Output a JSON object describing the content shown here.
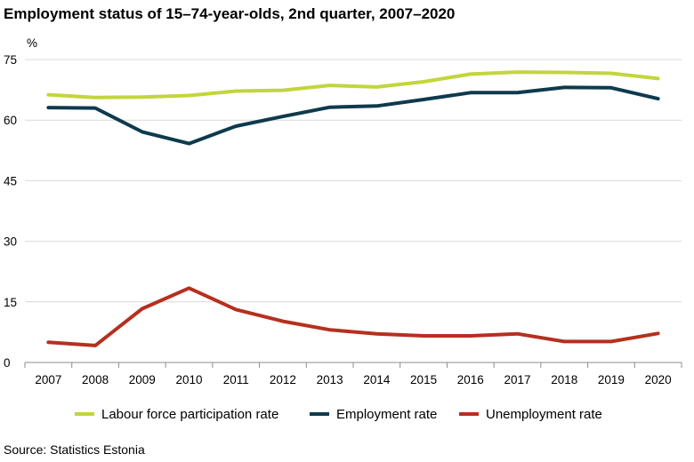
{
  "title": "Employment status of 15–74-year-olds, 2nd quarter, 2007–2020",
  "source": "Source: Statistics Estonia",
  "chart_data": {
    "type": "line",
    "title": "Employment status of 15–74-year-olds, 2nd quarter, 2007–2020",
    "ylabel": "%",
    "xlabel": "",
    "categories": [
      "2007",
      "2008",
      "2009",
      "2010",
      "2011",
      "2012",
      "2013",
      "2014",
      "2015",
      "2016",
      "2017",
      "2018",
      "2019",
      "2020"
    ],
    "yticks": [
      "0",
      "15",
      "30",
      "45",
      "60",
      "75"
    ],
    "ylim": [
      0,
      75
    ],
    "grid": "horizontal",
    "legend_position": "bottom",
    "series": [
      {
        "name": "Labour force participation rate",
        "color": "#c3d53b",
        "values": [
          66.3,
          65.6,
          65.7,
          66.1,
          67.2,
          67.4,
          68.6,
          68.2,
          69.5,
          71.4,
          71.9,
          71.8,
          71.6,
          70.3
        ]
      },
      {
        "name": "Employment rate",
        "color": "#0e3a4d",
        "values": [
          63.1,
          63.0,
          57.1,
          54.2,
          58.5,
          60.9,
          63.2,
          63.5,
          65.1,
          66.8,
          66.8,
          68.1,
          68.0,
          65.3
        ]
      },
      {
        "name": "Unemployment rate",
        "color": "#b5301f",
        "values": [
          5.0,
          4.2,
          13.3,
          18.4,
          13.1,
          10.2,
          8.1,
          7.1,
          6.6,
          6.6,
          7.1,
          5.2,
          5.2,
          7.2
        ]
      }
    ]
  }
}
